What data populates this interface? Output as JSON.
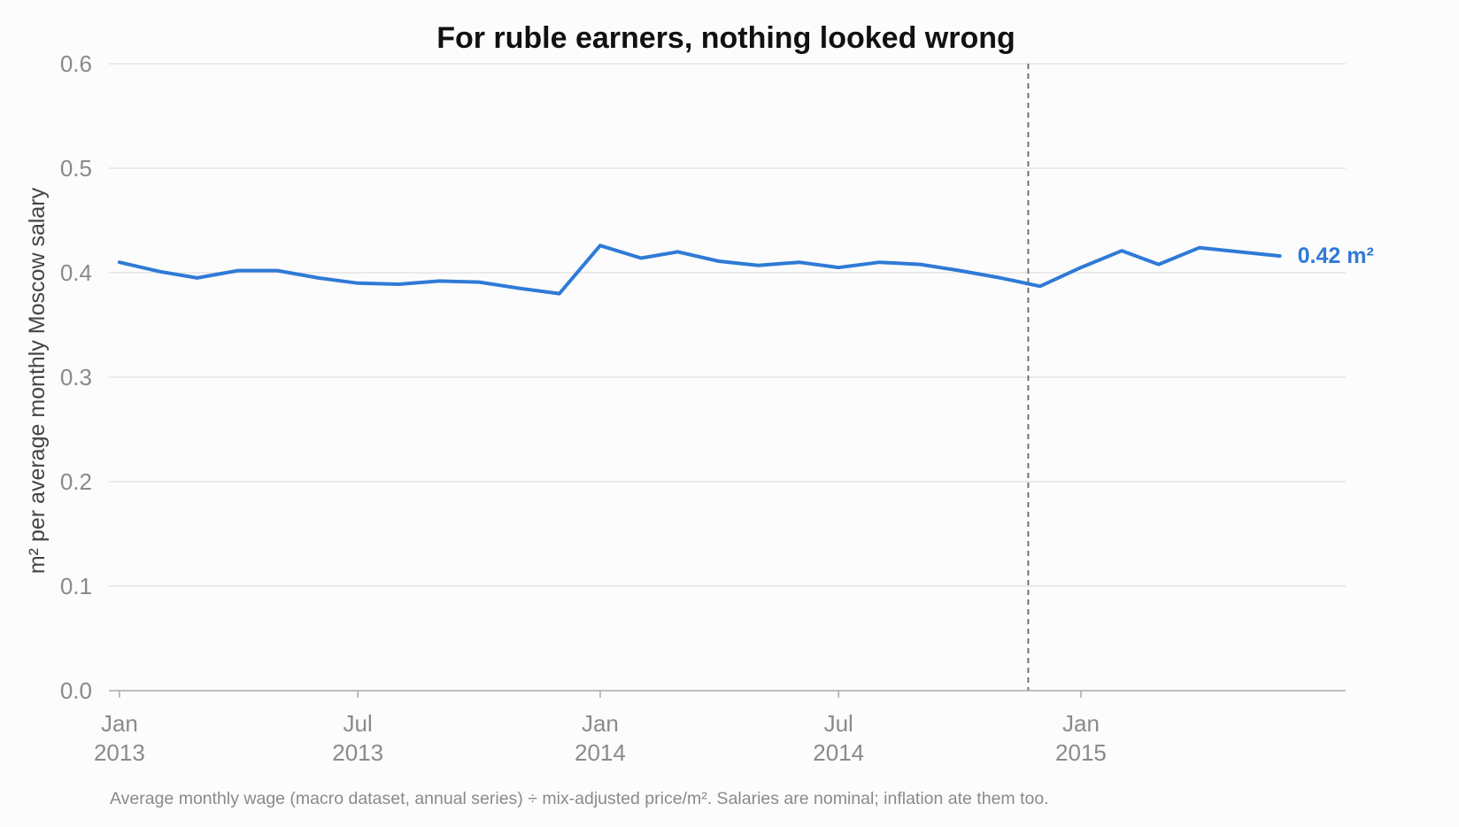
{
  "chart_data": {
    "type": "line",
    "title": "For ruble earners, nothing looked wrong",
    "ylabel": "m² per average monthly Moscow salary",
    "xlabel": "",
    "ylim": [
      0,
      0.6
    ],
    "yticks": [
      "0.0",
      "0.1",
      "0.2",
      "0.3",
      "0.4",
      "0.5",
      "0.6"
    ],
    "grid": "horizontal",
    "xlim": [
      "2013-01",
      "2015-07"
    ],
    "xticks": [
      {
        "date": "2013-01",
        "line1": "Jan",
        "line2": "2013"
      },
      {
        "date": "2013-07",
        "line1": "Jul",
        "line2": "2013"
      },
      {
        "date": "2014-01",
        "line1": "Jan",
        "line2": "2014"
      },
      {
        "date": "2014-07",
        "line1": "Jul",
        "line2": "2014"
      },
      {
        "date": "2015-01",
        "line1": "Jan",
        "line2": "2015"
      }
    ],
    "series": [
      {
        "x": [
          "2013-01",
          "2013-02",
          "2013-03",
          "2013-04",
          "2013-05",
          "2013-06",
          "2013-07",
          "2013-08",
          "2013-09",
          "2013-10",
          "2013-11",
          "2013-12",
          "2014-01",
          "2014-02",
          "2014-03",
          "2014-04",
          "2014-05",
          "2014-06",
          "2014-07",
          "2014-08",
          "2014-09",
          "2014-10",
          "2014-11",
          "2014-12",
          "2015-01",
          "2015-02",
          "2015-03",
          "2015-04",
          "2015-05",
          "2015-06"
        ],
        "values": [
          0.41,
          0.401,
          0.395,
          0.402,
          0.402,
          0.395,
          0.39,
          0.389,
          0.392,
          0.391,
          0.385,
          0.38,
          0.426,
          0.414,
          0.42,
          0.411,
          0.407,
          0.41,
          0.405,
          0.41,
          0.408,
          0.402,
          0.395,
          0.387,
          0.405,
          0.421,
          0.408,
          0.424,
          0.42,
          0.416
        ],
        "color": "#2f7ad6",
        "end_label": "0.42 m²"
      }
    ],
    "vline": {
      "date": "2014-11-22",
      "style": "dashed",
      "color": "#666666"
    },
    "footnote": "Average monthly wage (macro dataset, annual series) ÷ mix-adjusted price/m². Salaries are nominal; inflation ate them too."
  }
}
